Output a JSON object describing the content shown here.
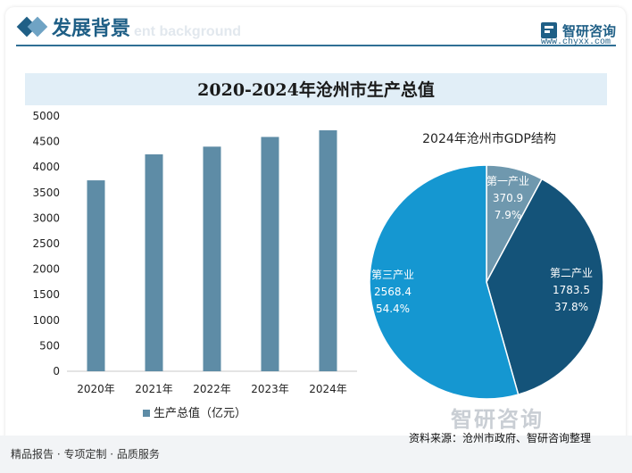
{
  "header": {
    "title": "发展背景",
    "watermark": "ent background"
  },
  "logo": {
    "name": "智研咨询",
    "url": "www.chyxx.com"
  },
  "chart_title": "2020-2024年沧州市生产总值",
  "footer": {
    "left": "精品报告 · 专项定制 · 品质服务",
    "source": "资料来源：沧州市政府、智研咨询整理",
    "watermark": "智研咨询"
  },
  "colors": {
    "bar": "#5e8ca6",
    "primary": "#1f5f86",
    "pie_primary": "#6f98ae",
    "pie_secondary": "#145379",
    "pie_tertiary": "#1597d1"
  },
  "chart_data": [
    {
      "type": "bar",
      "categories": [
        "2020年",
        "2021年",
        "2022年",
        "2023年",
        "2024年"
      ],
      "values": [
        3740,
        4250,
        4400,
        4590,
        4720
      ],
      "ylim": [
        0,
        5000
      ],
      "yticks": [
        0,
        500,
        1000,
        1500,
        2000,
        2500,
        3000,
        3500,
        4000,
        4500,
        5000
      ],
      "legend": "生产总值（亿元）",
      "legend_position": "bottom"
    },
    {
      "type": "pie",
      "title": "2024年沧州市GDP结构",
      "slices": [
        {
          "name": "第一产业",
          "value": "370.9",
          "percent": "7.9%",
          "value_num": 370.9
        },
        {
          "name": "第二产业",
          "value": "1783.5",
          "percent": "37.8%",
          "value_num": 1783.5
        },
        {
          "name": "第三产业",
          "value": "2568.4",
          "percent": "54.4%",
          "value_num": 2568.4
        }
      ]
    }
  ]
}
